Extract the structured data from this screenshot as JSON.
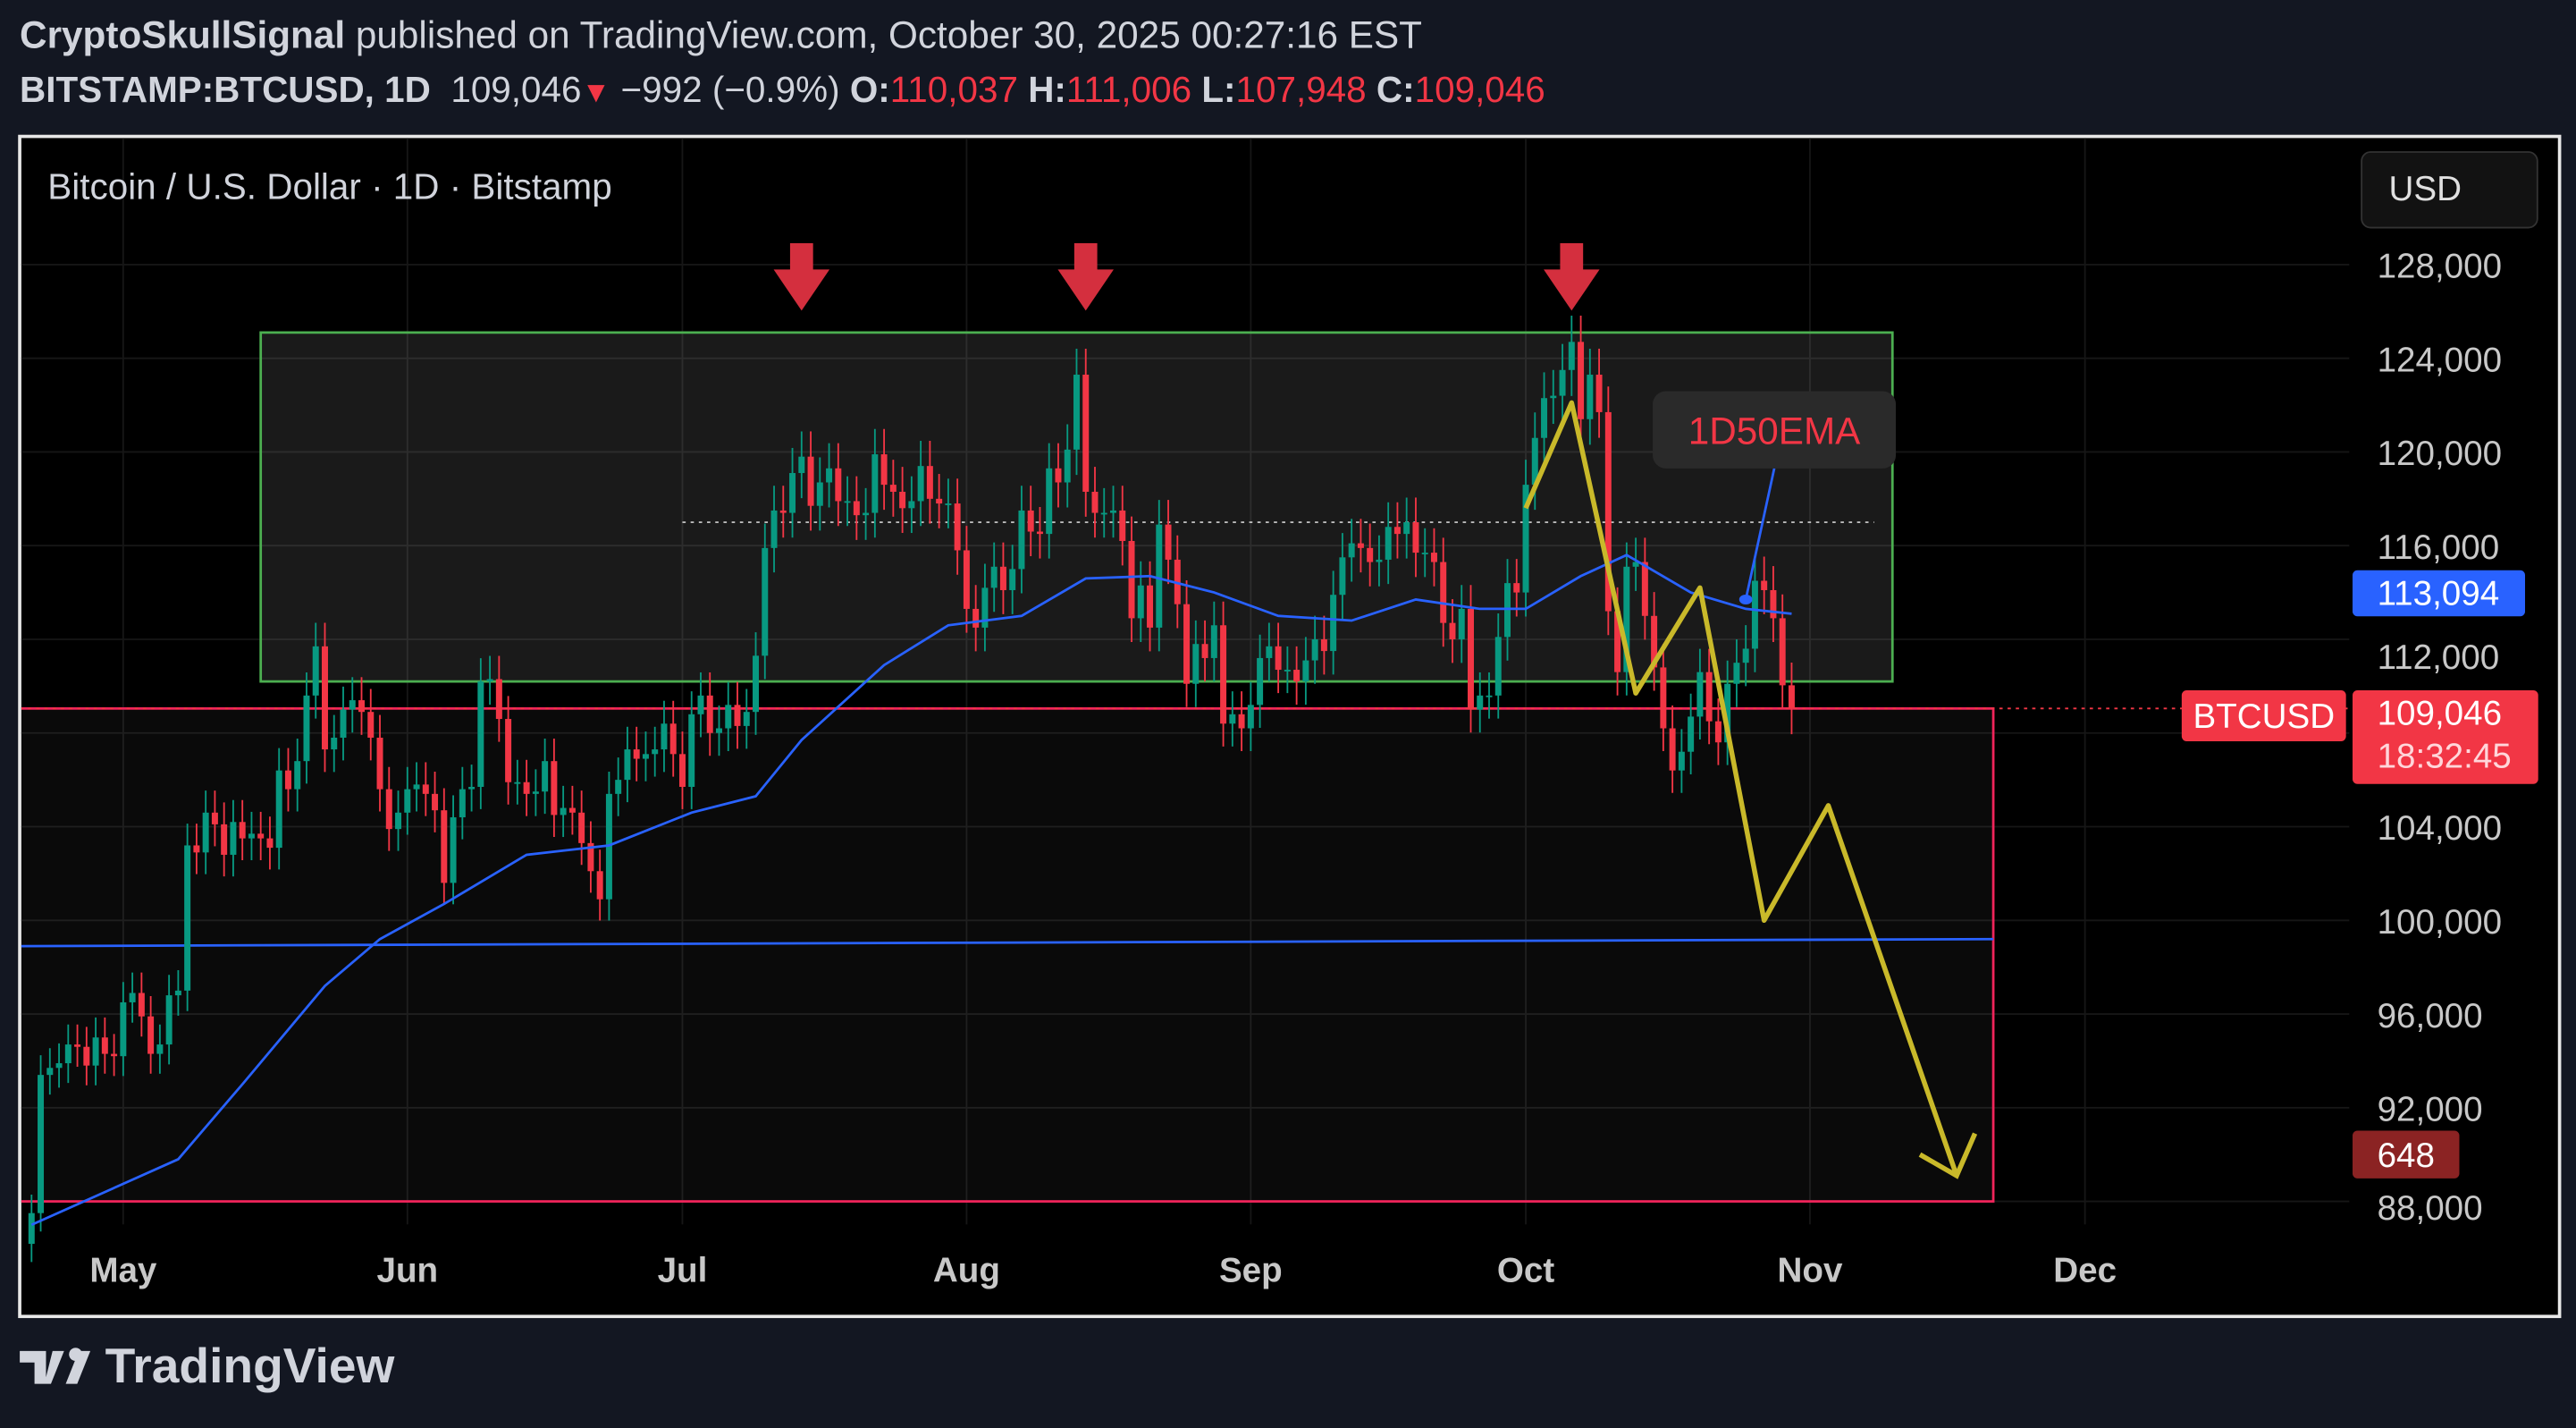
{
  "header": {
    "author": "CryptoSkullSignal",
    "published": "published on TradingView.com, October 30, 2025 00:27:16 EST",
    "symbol": "BITSTAMP:BTCUSD, 1D",
    "last": "109,046",
    "change": "−992 (−0.9%)",
    "o_label": "O:",
    "o": "110,037",
    "h_label": "H:",
    "h": "111,006",
    "l_label": "L:",
    "l": "107,948",
    "c_label": "C:",
    "c": "109,046"
  },
  "chart_title": "Bitcoin / U.S. Dollar · 1D · Bitstamp",
  "currency_button": "USD",
  "footer_logo": "TradingView",
  "chart_data": {
    "type": "candlestick",
    "start_date": "2025-04-21",
    "closes": [
      87500,
      93400,
      93700,
      93900,
      94700,
      94600,
      93800,
      95000,
      94300,
      94200,
      96500,
      96900,
      95900,
      94300,
      94700,
      96800,
      97000,
      103200,
      102900,
      104600,
      104100,
      102800,
      104200,
      103500,
      103700,
      103500,
      103100,
      106400,
      105600,
      106800,
      109600,
      111700,
      107300,
      107800,
      109000,
      109400,
      108900,
      107800,
      105600,
      103900,
      104600,
      105600,
      105800,
      105400,
      104700,
      101600,
      104400,
      105600,
      105700,
      110200,
      110300,
      108600,
      105900,
      105900,
      105400,
      105500,
      106800,
      104500,
      104800,
      104600,
      103300,
      102100,
      100900,
      105400,
      106000,
      107300,
      106900,
      107100,
      107300,
      108400,
      107100,
      105700,
      108800,
      109600,
      108000,
      108200,
      109200,
      108300,
      108900,
      111300,
      115900,
      117500,
      117400,
      119100,
      119800,
      117700,
      118700,
      119300,
      117900,
      117900,
      117300,
      117400,
      119900,
      118600,
      118300,
      117600,
      117900,
      119400,
      118000,
      117800,
      117800,
      115800,
      113300,
      112500,
      114200,
      115100,
      114100,
      115000,
      117500,
      116600,
      116500,
      119300,
      118700,
      120100,
      123300,
      118300,
      117400,
      117400,
      117500,
      116200,
      112900,
      114300,
      112500,
      116900,
      115400,
      113500,
      110100,
      111800,
      111200,
      112600,
      108400,
      108800,
      108200,
      109200,
      111200,
      111700,
      110700,
      110700,
      110200,
      111100,
      112000,
      111500,
      113900,
      115500,
      116100,
      115900,
      115300,
      115400,
      116800,
      116500,
      117000,
      115700,
      115700,
      115300,
      112700,
      112000,
      113300,
      109000,
      109600,
      109600,
      112100,
      114400,
      114000,
      118600,
      120600,
      122300,
      122400,
      123500,
      124700,
      121400,
      123300,
      121700,
      113200,
      110600,
      115100,
      115300,
      113000,
      110800,
      108200,
      106400,
      107200,
      108700,
      110600,
      108500,
      107600,
      110100,
      111000,
      111600,
      114500,
      114100,
      112900,
      110037,
      109046
    ],
    "last_candle": {
      "open": 110037,
      "high": 111006,
      "low": 107948,
      "close": 109046
    },
    "ema50": [
      [
        "2025-04-21",
        87000
      ],
      [
        "2025-05-07",
        89800
      ],
      [
        "2025-05-14",
        93000
      ],
      [
        "2025-05-23",
        97200
      ],
      [
        "2025-05-29",
        99200
      ],
      [
        "2025-06-05",
        100700
      ],
      [
        "2025-06-14",
        102800
      ],
      [
        "2025-06-23",
        103200
      ],
      [
        "2025-07-02",
        104600
      ],
      [
        "2025-07-09",
        105300
      ],
      [
        "2025-07-14",
        107700
      ],
      [
        "2025-07-23",
        110900
      ],
      [
        "2025-07-30",
        112600
      ],
      [
        "2025-08-07",
        113000
      ],
      [
        "2025-08-14",
        114600
      ],
      [
        "2025-08-21",
        114700
      ],
      [
        "2025-08-28",
        114000
      ],
      [
        "2025-09-04",
        113000
      ],
      [
        "2025-09-12",
        112800
      ],
      [
        "2025-09-19",
        113700
      ],
      [
        "2025-09-26",
        113300
      ],
      [
        "2025-10-01",
        113300
      ],
      [
        "2025-10-07",
        114700
      ],
      [
        "2025-10-12",
        115600
      ],
      [
        "2025-10-19",
        114000
      ],
      [
        "2025-10-25",
        113300
      ],
      [
        "2025-10-30",
        113094
      ]
    ],
    "y_ticks": [
      128000,
      124000,
      120000,
      116000,
      112000,
      108000,
      104000,
      100000,
      96000,
      92000,
      88000
    ],
    "y_tick_labels": [
      "128,000",
      "124,000",
      "120,000",
      "116,000",
      "112,000",
      "108,000",
      "104,000",
      "100,000",
      "96,000",
      "92,000",
      "88,000"
    ],
    "ylim": [
      86000,
      133000
    ],
    "x_ticks": [
      [
        "2025-05-01",
        "May"
      ],
      [
        "2025-06-01",
        "Jun"
      ],
      [
        "2025-07-01",
        "Jul"
      ],
      [
        "2025-08-01",
        "Aug"
      ],
      [
        "2025-09-01",
        "Sep"
      ],
      [
        "2025-10-01",
        "Oct"
      ],
      [
        "2025-11-01",
        "Nov"
      ],
      [
        "2025-12-01",
        "Dec"
      ]
    ],
    "colors": {
      "up": "#089981",
      "down": "#f23645",
      "ema": "#2962ff",
      "projection": "#c9b92a",
      "range_box": "#4caf50",
      "zone_box": "#f0245a"
    },
    "range_box": {
      "from": "2025-05-16",
      "to": "2025-11-10",
      "top": 125100,
      "bottom": 110200
    },
    "midline": {
      "from": "2025-07-01",
      "to": "2025-11-08",
      "price": 117000
    },
    "support_zone": {
      "to": "2025-11-21",
      "top": 109046,
      "bottom": 88000
    },
    "support_line": {
      "from_price": 98900,
      "to_price": 99200,
      "to": "2025-11-21"
    },
    "top_arrows": [
      "2025-07-14",
      "2025-08-14",
      "2025-10-06"
    ],
    "projection_path": [
      [
        "2025-10-01",
        117600
      ],
      [
        "2025-10-06",
        122100
      ],
      [
        "2025-10-13",
        109700
      ],
      [
        "2025-10-20",
        114200
      ],
      [
        "2025-10-27",
        100000
      ],
      [
        "2025-11-03",
        104900
      ],
      [
        "2025-11-17",
        89100
      ]
    ],
    "projection_arrowhead": [
      [
        "2025-11-13",
        90000
      ],
      [
        "2025-11-17",
        89100
      ],
      [
        "2025-11-19",
        90900
      ]
    ],
    "ema_label": {
      "text": "1D50EMA",
      "anchor": [
        "2025-10-25",
        113700
      ]
    },
    "badges": {
      "ema_value": "113,094",
      "symbol": "BTCUSD",
      "price": "109,046",
      "countdown": "18:32:45",
      "volume": "648"
    }
  }
}
